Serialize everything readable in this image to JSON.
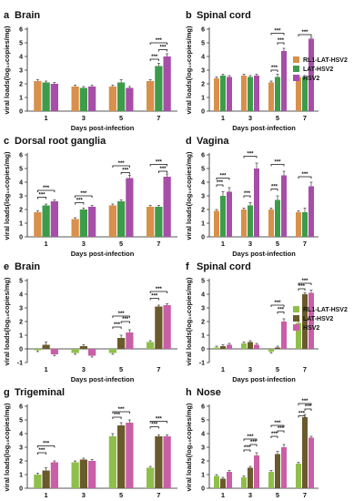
{
  "figure": {
    "y_axis_label": "viral loads(log₁₀copies/mg)",
    "x_axis_label": "Days post-infection",
    "significance": "***"
  },
  "legends": [
    {
      "entries": [
        {
          "label": "RL1-LAT-HSV2",
          "color": "#d8904a"
        },
        {
          "label": "LAT-HSV2",
          "color": "#3d9c4a"
        },
        {
          "label": "HSV2",
          "color": "#a64ea8"
        }
      ]
    },
    {
      "entries": [
        {
          "label": "RL1-LAT-HSV2",
          "color": "#8fbf4a"
        },
        {
          "label": "LAT-HSV2",
          "color": "#6b5a2c"
        },
        {
          "label": "HSV2",
          "color": "#c95fa6"
        }
      ]
    }
  ],
  "chart_data": [
    {
      "panel": "a",
      "title": "Brain",
      "type": "bar",
      "categories": [
        "1",
        "3",
        "5",
        "7"
      ],
      "ylim": [
        0,
        6
      ],
      "yticks": [
        0,
        1,
        2,
        3,
        4,
        5,
        6
      ],
      "colors": [
        "#d8904a",
        "#3d9c4a",
        "#a64ea8"
      ],
      "series": [
        {
          "name": "RL1-LAT-HSV2",
          "values": [
            2.2,
            1.8,
            1.8,
            2.2
          ]
        },
        {
          "name": "LAT-HSV2",
          "values": [
            2.1,
            1.7,
            2.1,
            3.3
          ]
        },
        {
          "name": "HSV2",
          "values": [
            2.0,
            1.8,
            1.7,
            4.0
          ]
        }
      ],
      "errors": [
        [
          0.1,
          0.1,
          0.1,
          0.1
        ],
        [
          0.1,
          0.1,
          0.2,
          0.2
        ],
        [
          0.1,
          0.1,
          0.1,
          0.2
        ]
      ],
      "sig": [
        {
          "day": 3,
          "a": 0,
          "b": 2,
          "y": 5.0
        },
        {
          "day": 3,
          "a": 1,
          "b": 2,
          "y": 4.5
        },
        {
          "day": 3,
          "a": 0,
          "b": 1,
          "y": 3.8
        }
      ]
    },
    {
      "panel": "b",
      "title": "Spinal cord",
      "type": "bar",
      "categories": [
        "1",
        "3",
        "5",
        "7"
      ],
      "ylim": [
        0,
        6
      ],
      "yticks": [
        0,
        1,
        2,
        3,
        4,
        5,
        6
      ],
      "colors": [
        "#d8904a",
        "#3d9c4a",
        "#a64ea8"
      ],
      "series": [
        {
          "name": "RL1-LAT-HSV2",
          "values": [
            2.4,
            2.6,
            2.1,
            2.5
          ]
        },
        {
          "name": "LAT-HSV2",
          "values": [
            2.6,
            2.5,
            2.5,
            2.5
          ]
        },
        {
          "name": "HSV2",
          "values": [
            2.5,
            2.6,
            4.4,
            5.3
          ]
        }
      ],
      "errors": [
        [
          0.1,
          0.1,
          0.1,
          0.1
        ],
        [
          0.1,
          0.1,
          0.2,
          0.1
        ],
        [
          0.1,
          0.1,
          0.2,
          0.1
        ]
      ],
      "sig": [
        {
          "day": 2,
          "a": 0,
          "b": 2,
          "y": 5.7
        },
        {
          "day": 2,
          "a": 1,
          "b": 2,
          "y": 5.0
        },
        {
          "day": 2,
          "a": 0,
          "b": 1,
          "y": 3.0
        },
        {
          "day": 3,
          "a": 0,
          "b": 2,
          "y": 5.6
        }
      ]
    },
    {
      "panel": "c",
      "title": "Dorsal root ganglia",
      "type": "bar",
      "categories": [
        "1",
        "3",
        "5",
        "7"
      ],
      "ylim": [
        0,
        6
      ],
      "yticks": [
        0,
        1,
        2,
        3,
        4,
        5,
        6
      ],
      "colors": [
        "#d8904a",
        "#3d9c4a",
        "#a64ea8"
      ],
      "series": [
        {
          "name": "RL1-LAT-HSV2",
          "values": [
            1.8,
            1.3,
            2.3,
            2.2
          ]
        },
        {
          "name": "LAT-HSV2",
          "values": [
            2.3,
            2.0,
            2.6,
            2.2
          ]
        },
        {
          "name": "HSV2",
          "values": [
            2.6,
            2.2,
            4.3,
            4.4
          ]
        }
      ],
      "errors": [
        [
          0.1,
          0.1,
          0.1,
          0.1
        ],
        [
          0.1,
          0.1,
          0.1,
          0.1
        ],
        [
          0.1,
          0.1,
          0.2,
          0.2
        ]
      ],
      "sig": [
        {
          "day": 0,
          "a": 0,
          "b": 2,
          "y": 3.4
        },
        {
          "day": 0,
          "a": 0,
          "b": 1,
          "y": 2.9
        },
        {
          "day": 1,
          "a": 0,
          "b": 2,
          "y": 3.0
        },
        {
          "day": 1,
          "a": 0,
          "b": 1,
          "y": 2.5
        },
        {
          "day": 2,
          "a": 0,
          "b": 2,
          "y": 5.2
        },
        {
          "day": 2,
          "a": 1,
          "b": 2,
          "y": 4.7
        },
        {
          "day": 3,
          "a": 0,
          "b": 2,
          "y": 5.3
        },
        {
          "day": 3,
          "a": 1,
          "b": 2,
          "y": 4.8
        }
      ]
    },
    {
      "panel": "d",
      "title": "Vagina",
      "type": "bar",
      "categories": [
        "1",
        "3",
        "5",
        "7"
      ],
      "ylim": [
        0,
        6
      ],
      "yticks": [
        0,
        1,
        2,
        3,
        4,
        5,
        6
      ],
      "colors": [
        "#d8904a",
        "#3d9c4a",
        "#a64ea8"
      ],
      "series": [
        {
          "name": "RL1-LAT-HSV2",
          "values": [
            1.9,
            2.0,
            2.0,
            1.8
          ]
        },
        {
          "name": "LAT-HSV2",
          "values": [
            3.0,
            2.3,
            2.7,
            1.8
          ]
        },
        {
          "name": "HSV2",
          "values": [
            3.3,
            5.0,
            4.5,
            3.7
          ]
        }
      ],
      "errors": [
        [
          0.1,
          0.1,
          0.1,
          0.1
        ],
        [
          0.3,
          0.2,
          0.3,
          0.3
        ],
        [
          0.3,
          0.4,
          0.3,
          0.3
        ]
      ],
      "sig": [
        {
          "day": 0,
          "a": 0,
          "b": 2,
          "y": 4.3
        },
        {
          "day": 0,
          "a": 0,
          "b": 1,
          "y": 3.8
        },
        {
          "day": 1,
          "a": 0,
          "b": 2,
          "y": 5.9
        },
        {
          "day": 1,
          "a": 0,
          "b": 1,
          "y": 3.0
        },
        {
          "day": 2,
          "a": 0,
          "b": 2,
          "y": 5.3
        },
        {
          "day": 2,
          "a": 0,
          "b": 1,
          "y": 3.5
        },
        {
          "day": 3,
          "a": 0,
          "b": 2,
          "y": 4.4
        }
      ]
    },
    {
      "panel": "e",
      "title": "Brain",
      "type": "bar",
      "categories": [
        "1",
        "3",
        "5",
        "7"
      ],
      "ylim": [
        -1,
        5
      ],
      "yticks": [
        -1,
        0,
        1,
        2,
        3,
        4,
        5
      ],
      "colors": [
        "#8fbf4a",
        "#6b5a2c",
        "#c95fa6"
      ],
      "series": [
        {
          "name": "RL1-LAT-HSV2",
          "values": [
            -0.1,
            -0.3,
            -0.3,
            0.5
          ]
        },
        {
          "name": "LAT-HSV2",
          "values": [
            0.3,
            0.2,
            0.8,
            3.1
          ]
        },
        {
          "name": "HSV2",
          "values": [
            -0.4,
            -0.5,
            1.2,
            3.2
          ]
        }
      ],
      "errors": [
        [
          0.1,
          0.1,
          0.1,
          0.1
        ],
        [
          0.2,
          0.1,
          0.2,
          0.1
        ],
        [
          0.1,
          0.1,
          0.2,
          0.1
        ]
      ],
      "sig": [
        {
          "day": 2,
          "a": 0,
          "b": 2,
          "y": 2.4
        },
        {
          "day": 2,
          "a": 1,
          "b": 2,
          "y": 2.0
        },
        {
          "day": 2,
          "a": 0,
          "b": 1,
          "y": 1.6
        },
        {
          "day": 3,
          "a": 0,
          "b": 2,
          "y": 4.2
        },
        {
          "day": 3,
          "a": 0,
          "b": 1,
          "y": 3.7
        }
      ]
    },
    {
      "panel": "f",
      "title": "Spinal cord",
      "type": "bar",
      "categories": [
        "1",
        "3",
        "5",
        "7"
      ],
      "ylim": [
        -1,
        5
      ],
      "yticks": [
        -1,
        0,
        1,
        2,
        3,
        4,
        5
      ],
      "colors": [
        "#8fbf4a",
        "#6b5a2c",
        "#c95fa6"
      ],
      "series": [
        {
          "name": "RL1-LAT-HSV2",
          "values": [
            0.1,
            0.4,
            -0.2,
            1.9
          ]
        },
        {
          "name": "LAT-HSV2",
          "values": [
            0.2,
            0.5,
            0.1,
            4.0
          ]
        },
        {
          "name": "HSV2",
          "values": [
            0.3,
            0.3,
            2.0,
            4.1
          ]
        }
      ],
      "errors": [
        [
          0.1,
          0.1,
          0.1,
          0.2
        ],
        [
          0.1,
          0.1,
          0.1,
          0.1
        ],
        [
          0.1,
          0.1,
          0.2,
          0.2
        ]
      ],
      "sig": [
        {
          "day": 2,
          "a": 0,
          "b": 2,
          "y": 3.2
        },
        {
          "day": 2,
          "a": 1,
          "b": 2,
          "y": 2.7
        },
        {
          "day": 3,
          "a": 0,
          "b": 2,
          "y": 4.8
        },
        {
          "day": 3,
          "a": 0,
          "b": 1,
          "y": 4.4
        }
      ]
    },
    {
      "panel": "g",
      "title": "Trigeminal",
      "type": "bar",
      "categories": [
        "1",
        "3",
        "5",
        "7"
      ],
      "ylim": [
        0,
        6
      ],
      "yticks": [
        0,
        1,
        2,
        3,
        4,
        5,
        6
      ],
      "colors": [
        "#8fbf4a",
        "#6b5a2c",
        "#c95fa6"
      ],
      "series": [
        {
          "name": "RL1-LAT-HSV2",
          "values": [
            1.0,
            1.9,
            3.8,
            1.5
          ]
        },
        {
          "name": "LAT-HSV2",
          "values": [
            1.3,
            2.1,
            4.6,
            3.8
          ]
        },
        {
          "name": "HSV2",
          "values": [
            1.9,
            2.0,
            4.8,
            3.8
          ]
        }
      ],
      "errors": [
        [
          0.1,
          0.1,
          0.2,
          0.1
        ],
        [
          0.2,
          0.1,
          0.2,
          0.1
        ],
        [
          0.1,
          0.1,
          0.2,
          0.1
        ]
      ],
      "sig": [
        {
          "day": 0,
          "a": 0,
          "b": 2,
          "y": 3.1
        },
        {
          "day": 0,
          "a": 0,
          "b": 1,
          "y": 2.6
        },
        {
          "day": 2,
          "a": 0,
          "b": 2,
          "y": 5.6
        },
        {
          "day": 2,
          "a": 0,
          "b": 1,
          "y": 5.2
        },
        {
          "day": 3,
          "a": 0,
          "b": 2,
          "y": 4.9
        },
        {
          "day": 3,
          "a": 0,
          "b": 1,
          "y": 4.5
        }
      ]
    },
    {
      "panel": "h",
      "title": "Nose",
      "type": "bar",
      "categories": [
        "1",
        "3",
        "5",
        "7"
      ],
      "ylim": [
        0,
        6
      ],
      "yticks": [
        0,
        1,
        2,
        3,
        4,
        5,
        6
      ],
      "colors": [
        "#8fbf4a",
        "#6b5a2c",
        "#c95fa6"
      ],
      "series": [
        {
          "name": "RL1-LAT-HSV2",
          "values": [
            0.9,
            0.8,
            1.2,
            1.8
          ]
        },
        {
          "name": "LAT-HSV2",
          "values": [
            0.7,
            1.5,
            2.5,
            5.2
          ]
        },
        {
          "name": "HSV2",
          "values": [
            1.2,
            2.4,
            3.0,
            3.7
          ]
        }
      ],
      "errors": [
        [
          0.1,
          0.1,
          0.1,
          0.1
        ],
        [
          0.1,
          0.1,
          0.2,
          0.2
        ],
        [
          0.1,
          0.2,
          0.2,
          0.1
        ]
      ],
      "sig": [
        {
          "day": 1,
          "a": 0,
          "b": 2,
          "y": 3.6
        },
        {
          "day": 1,
          "a": 1,
          "b": 2,
          "y": 3.2
        },
        {
          "day": 1,
          "a": 0,
          "b": 1,
          "y": 2.8
        },
        {
          "day": 2,
          "a": 0,
          "b": 2,
          "y": 4.6
        },
        {
          "day": 2,
          "a": 1,
          "b": 2,
          "y": 4.2
        },
        {
          "day": 2,
          "a": 0,
          "b": 1,
          "y": 3.8
        },
        {
          "day": 3,
          "a": 0,
          "b": 2,
          "y": 6.2
        },
        {
          "day": 3,
          "a": 1,
          "b": 2,
          "y": 5.8
        },
        {
          "day": 3,
          "a": 0,
          "b": 1,
          "y": 5.3
        }
      ]
    }
  ]
}
